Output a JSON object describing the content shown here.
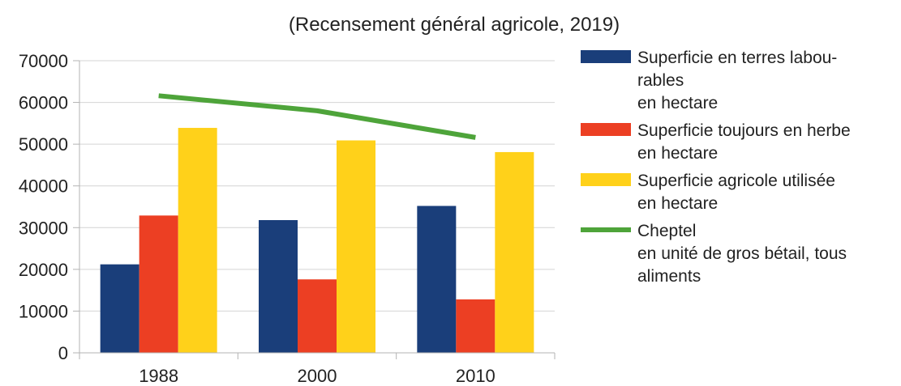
{
  "chart_data": {
    "type": "bar",
    "title": "(Recensement général agricole, 2019)",
    "categories": [
      "1988",
      "2000",
      "2010"
    ],
    "ylim": [
      0,
      70000
    ],
    "yticks": [
      0,
      10000,
      20000,
      30000,
      40000,
      50000,
      60000,
      70000
    ],
    "grid": true,
    "legend_position": "right",
    "series": [
      {
        "name": "Superficie en terres labourables en hectare",
        "legend_lines": [
          "Superficie en terres labou-",
          "rables",
          "en hectare"
        ],
        "kind": "bar",
        "color": "#1a3e7a",
        "values": [
          21200,
          31800,
          35200
        ]
      },
      {
        "name": "Superficie toujours en herbe en hectare",
        "legend_lines": [
          "Superficie toujours en herbe",
          "en hectare"
        ],
        "kind": "bar",
        "color": "#ec3f23",
        "values": [
          32900,
          17600,
          12800
        ]
      },
      {
        "name": "Superficie agricole utilisée en hectare",
        "legend_lines": [
          "Superficie agricole utilisée",
          "en hectare"
        ],
        "kind": "bar",
        "color": "#ffd11a",
        "values": [
          53900,
          50900,
          48100
        ]
      },
      {
        "name": "Cheptel en unité de gros bétail, tous aliments",
        "legend_lines": [
          "Cheptel",
          "en unité de gros bétail, tous",
          "aliments"
        ],
        "kind": "line",
        "color": "#4ea43a",
        "values": [
          61600,
          58000,
          51600
        ]
      }
    ]
  }
}
